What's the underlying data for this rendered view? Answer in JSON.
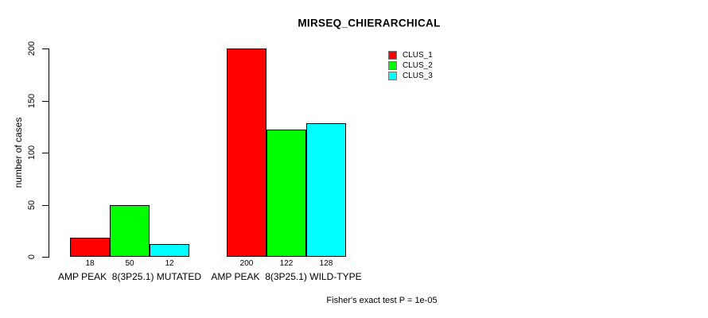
{
  "chart_data": {
    "type": "bar",
    "title": "MIRSEQ_CHIERARCHICAL",
    "ylabel": "number of cases",
    "xlabel": "",
    "ylim": [
      0,
      200
    ],
    "yticks": [
      0,
      50,
      100,
      150,
      200
    ],
    "grid": false,
    "background_color": "#ffffff",
    "axis_color": "#000000",
    "categories": [
      "AMP PEAK  8(3P25.1) MUTATED",
      "AMP PEAK  8(3P25.1) WILD-TYPE"
    ],
    "series": [
      {
        "name": "CLUS_1",
        "color": "#ff0000",
        "values": [
          18,
          200
        ]
      },
      {
        "name": "CLUS_2",
        "color": "#00ff00",
        "values": [
          50,
          122
        ]
      },
      {
        "name": "CLUS_3",
        "color": "#00ffff",
        "values": [
          12,
          128
        ]
      }
    ],
    "bar_value_labels": [
      [
        18,
        50,
        12
      ],
      [
        200,
        122,
        128
      ]
    ],
    "legend": {
      "position": "top-right",
      "entries": [
        "CLUS_1",
        "CLUS_2",
        "CLUS_3"
      ]
    },
    "annotation": "Fisher's exact test P = 1e-05"
  }
}
